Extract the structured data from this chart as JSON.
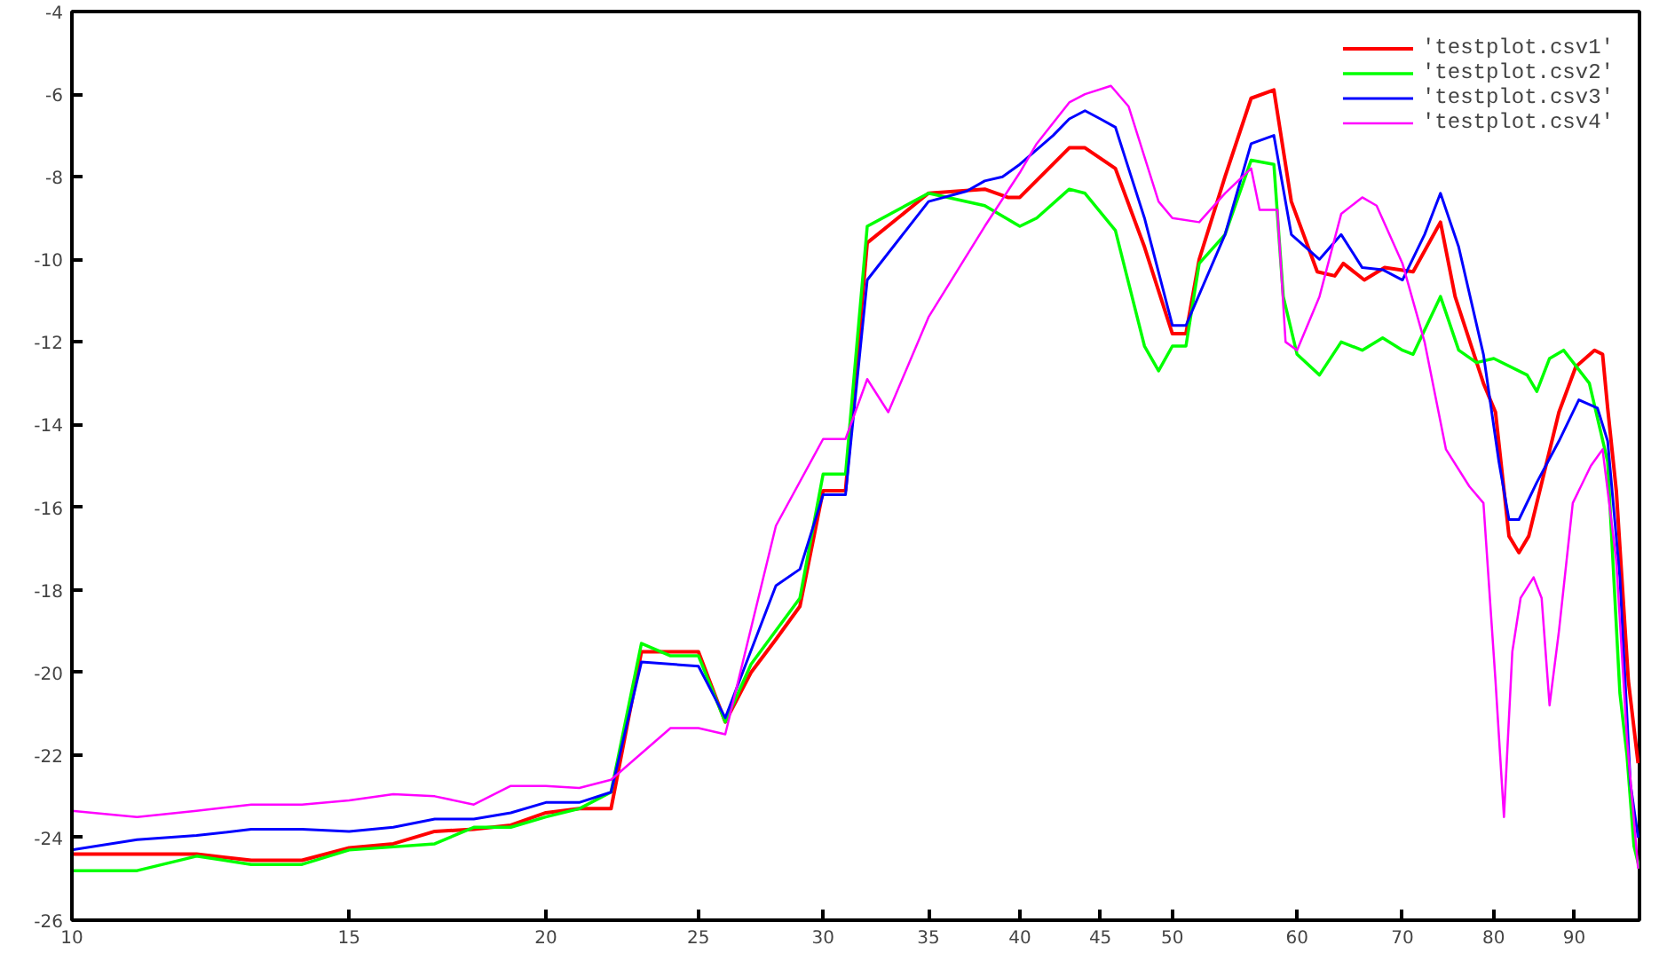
{
  "chart_data": {
    "type": "line",
    "log": "x",
    "grid": false,
    "legend": "top right",
    "xlim": [
      10,
      99
    ],
    "xticks": [
      10,
      15,
      20,
      25,
      30,
      35,
      40,
      45,
      50,
      60,
      70,
      80,
      90
    ],
    "ylim": [
      -26,
      -4
    ],
    "yticks": [
      -26,
      -24,
      -22,
      -20,
      -18,
      -16,
      -14,
      -12,
      -10,
      -8,
      -6,
      -4
    ],
    "series": [
      {
        "name": "'testplot.csv1'",
        "color": "#ff0000",
        "x": [
          10,
          12,
          13,
          14,
          15,
          16,
          17,
          18,
          19,
          20,
          21,
          22,
          23,
          25,
          26,
          27,
          28,
          29,
          30,
          31,
          32,
          35,
          38,
          39.3,
          40,
          43,
          44,
          46,
          48,
          50,
          51,
          52,
          54,
          56.1,
          58,
          59.5,
          61.8,
          63.4,
          64.2,
          66.2,
          68.2,
          71.1,
          74,
          75.6,
          78.8,
          80.2,
          81.8,
          83,
          84.2,
          88,
          90.2,
          92.7,
          93.8,
          94.5,
          95.7,
          97.4,
          98.8
        ],
        "values": [
          -24.4,
          -24.4,
          -24.55,
          -24.55,
          -24.25,
          -24.15,
          -23.85,
          -23.8,
          -23.7,
          -23.4,
          -23.3,
          -23.3,
          -19.5,
          -19.5,
          -21.2,
          -20.0,
          -19.2,
          -18.4,
          -15.6,
          -15.6,
          -9.6,
          -8.4,
          -8.3,
          -8.5,
          -8.5,
          -7.3,
          -7.3,
          -7.8,
          -9.7,
          -11.8,
          -11.8,
          -10.0,
          -8.0,
          -6.1,
          -5.9,
          -8.6,
          -10.3,
          -10.4,
          -10.1,
          -10.5,
          -10.2,
          -10.3,
          -9.1,
          -10.9,
          -13.0,
          -13.7,
          -16.7,
          -17.1,
          -16.7,
          -13.7,
          -12.6,
          -12.2,
          -12.3,
          -13.6,
          -15.6,
          -20.2,
          -22.2
        ]
      },
      {
        "name": "'testplot.csv2'",
        "color": "#00ff00",
        "x": [
          10,
          11,
          12,
          13,
          14,
          15,
          17,
          18,
          19,
          20,
          21,
          22,
          23,
          24,
          25,
          26,
          27,
          29,
          30,
          31,
          32,
          35,
          36,
          38,
          40,
          41,
          43,
          44,
          46,
          48,
          49,
          50,
          51,
          52,
          54,
          56.1,
          58,
          58.8,
          60,
          62,
          64,
          66,
          68,
          70,
          71.1,
          74,
          76,
          78,
          80,
          84,
          85.2,
          86.8,
          88.6,
          92,
          94.5,
          96.2,
          97.2,
          98.2,
          99
        ],
        "values": [
          -24.8,
          -24.8,
          -24.45,
          -24.65,
          -24.65,
          -24.3,
          -24.15,
          -23.75,
          -23.75,
          -23.5,
          -23.3,
          -22.9,
          -19.3,
          -19.6,
          -19.6,
          -21.2,
          -19.8,
          -18.2,
          -15.2,
          -15.2,
          -9.2,
          -8.4,
          -8.5,
          -8.7,
          -9.2,
          -9.0,
          -8.3,
          -8.4,
          -9.3,
          -12.1,
          -12.7,
          -12.1,
          -12.1,
          -10.1,
          -9.4,
          -7.6,
          -7.7,
          -10.9,
          -12.3,
          -12.8,
          -12.0,
          -12.2,
          -11.9,
          -12.2,
          -12.3,
          -10.9,
          -12.2,
          -12.5,
          -12.4,
          -12.8,
          -13.2,
          -12.4,
          -12.2,
          -13.0,
          -14.9,
          -20.5,
          -22.0,
          -24.2,
          -24.75
        ]
      },
      {
        "name": "'testplot.csv3'",
        "color": "#0000ff",
        "x": [
          10,
          11,
          12,
          13,
          14,
          15,
          16,
          17,
          18,
          19,
          20,
          21,
          22,
          23,
          25,
          26,
          28,
          29,
          30,
          31,
          32,
          35,
          37,
          38,
          39,
          40,
          42,
          43,
          44,
          45,
          46,
          48,
          50,
          51,
          54,
          56.1,
          58,
          59.5,
          62,
          64,
          66,
          68,
          70,
          72.3,
          74,
          76,
          78.8,
          80.6,
          81.8,
          83,
          85.2,
          88,
          90.6,
          93.1,
          94.5,
          96.2,
          97.7,
          98.8
        ],
        "values": [
          -24.3,
          -24.05,
          -23.95,
          -23.8,
          -23.8,
          -23.85,
          -23.75,
          -23.55,
          -23.55,
          -23.4,
          -23.15,
          -23.15,
          -22.9,
          -19.75,
          -19.85,
          -21.1,
          -17.9,
          -17.5,
          -15.7,
          -15.7,
          -10.5,
          -8.6,
          -8.35,
          -8.1,
          -8.0,
          -7.7,
          -7.0,
          -6.6,
          -6.4,
          -6.6,
          -6.8,
          -9.0,
          -11.6,
          -11.6,
          -9.4,
          -7.2,
          -7.0,
          -9.4,
          -10.0,
          -9.4,
          -10.2,
          -10.25,
          -10.5,
          -9.4,
          -8.4,
          -9.7,
          -12.3,
          -14.9,
          -16.3,
          -16.3,
          -15.4,
          -14.4,
          -13.4,
          -13.6,
          -14.4,
          -17.7,
          -22.7,
          -24.0
        ]
      },
      {
        "name": "'testplot.csv4'",
        "color": "#ff00ff",
        "x": [
          10,
          11,
          12,
          13,
          14,
          15,
          16,
          17,
          18,
          19,
          20,
          21,
          22,
          24,
          25,
          26,
          28,
          30,
          31,
          32,
          33,
          35,
          38,
          40,
          41,
          43,
          44,
          45.7,
          46.9,
          49,
          50,
          52,
          54,
          56.1,
          56.8,
          58.3,
          59,
          60,
          62,
          64,
          66,
          67.4,
          70,
          72.3,
          74.6,
          77.2,
          78.8,
          80.2,
          81.2,
          82.2,
          83.2,
          84.8,
          85.8,
          86.8,
          88,
          89.8,
          92.2,
          93.8,
          95.7,
          97.2,
          98.8
        ],
        "values": [
          -23.35,
          -23.5,
          -23.35,
          -23.2,
          -23.2,
          -23.1,
          -22.95,
          -23.0,
          -23.2,
          -22.75,
          -22.75,
          -22.8,
          -22.6,
          -21.35,
          -21.35,
          -21.5,
          -16.45,
          -14.35,
          -14.35,
          -12.9,
          -13.7,
          -11.4,
          -9.2,
          -7.9,
          -7.2,
          -6.2,
          -6.0,
          -5.8,
          -6.3,
          -8.6,
          -9.0,
          -9.1,
          -8.4,
          -7.8,
          -8.8,
          -8.8,
          -12.0,
          -12.2,
          -10.9,
          -8.9,
          -8.5,
          -8.7,
          -10.1,
          -12.0,
          -14.6,
          -15.5,
          -15.9,
          -20.2,
          -23.5,
          -19.5,
          -18.2,
          -17.7,
          -18.2,
          -20.8,
          -19.0,
          -15.9,
          -15.0,
          -14.6,
          -17.3,
          -21.6,
          -24.75
        ]
      }
    ]
  }
}
